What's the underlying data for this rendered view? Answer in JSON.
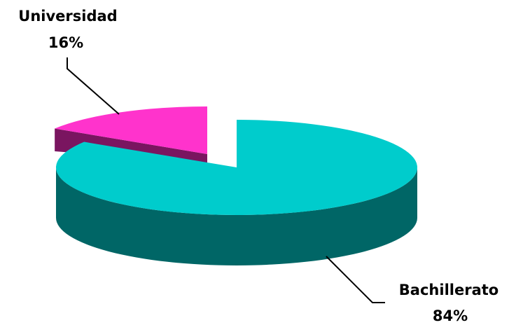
{
  "chart_data": {
    "type": "pie",
    "style": "3d-exploded",
    "slices": [
      {
        "name": "Universidad",
        "value": 16,
        "value_label": "16%",
        "top_color": "#ff33cc",
        "side_color": "#7a1560"
      },
      {
        "name": "Bachillerato",
        "value": 84,
        "value_label": "84%",
        "top_color": "#00cccc",
        "side_color": "#006666"
      }
    ],
    "legend": "none"
  }
}
